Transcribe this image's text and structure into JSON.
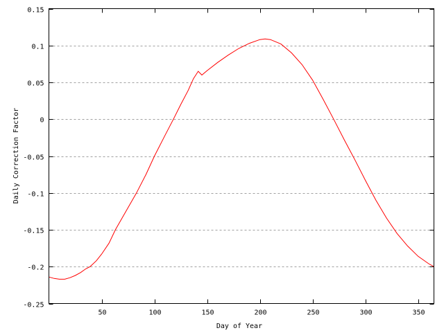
{
  "chart_data": {
    "type": "line",
    "title": "",
    "xlabel": "Day of Year",
    "ylabel": "Daily Correction Factor",
    "xlim": [
      0,
      365
    ],
    "ylim": [
      -0.25,
      0.15
    ],
    "xticks": [
      50,
      100,
      150,
      200,
      250,
      300,
      350
    ],
    "xtick_labels": [
      "50",
      "100",
      "150",
      "200",
      "250",
      "300",
      "350"
    ],
    "yticks": [
      -0.25,
      -0.2,
      -0.15,
      -0.1,
      -0.05,
      0,
      0.05,
      0.1,
      0.15
    ],
    "ytick_labels": [
      "-0.25",
      "-0.2",
      "-0.15",
      "-0.1",
      "-0.05",
      "0",
      "0.05",
      "0.1",
      "0.15"
    ],
    "grid": "horizontal dashed",
    "colors": {
      "line": "#ff0000",
      "grid": "#a0a0a0",
      "axis": "#000000"
    },
    "series": [
      {
        "x": [
          0,
          5,
          10,
          15,
          20,
          25,
          30,
          35,
          39,
          45,
          50,
          57,
          63,
          73,
          83,
          92,
          100,
          110,
          118,
          125,
          132,
          137,
          141.5,
          145,
          150,
          160,
          170,
          180,
          190,
          200,
          205,
          210,
          220,
          230,
          240,
          250,
          260,
          270,
          280,
          290,
          300,
          310,
          320,
          330,
          340,
          350,
          360,
          365
        ],
        "y": [
          -0.214,
          -0.216,
          -0.217,
          -0.217,
          -0.215,
          -0.212,
          -0.208,
          -0.203,
          -0.2,
          -0.192,
          -0.183,
          -0.168,
          -0.15,
          -0.125,
          -0.1,
          -0.075,
          -0.05,
          -0.022,
          0.0,
          0.02,
          0.039,
          0.055,
          0.065,
          0.06,
          0.066,
          0.077,
          0.087,
          0.096,
          0.103,
          0.108,
          0.109,
          0.108,
          0.102,
          0.09,
          0.074,
          0.053,
          0.027,
          0.0,
          -0.028,
          -0.055,
          -0.083,
          -0.11,
          -0.134,
          -0.155,
          -0.172,
          -0.186,
          -0.196,
          -0.2
        ]
      }
    ]
  }
}
